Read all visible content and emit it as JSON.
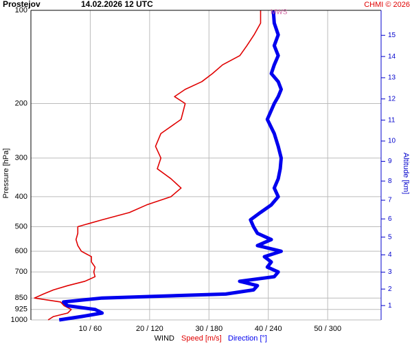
{
  "chart_data": {
    "type": "line",
    "station": "Prostejov",
    "title": "14.02.2026 12 UTC",
    "credit": "CHMI © 2026",
    "marker_label": "MWS",
    "ylabel": "Pressure [hPa]",
    "y2label": "Altitude [km]",
    "xlabel": "WIND",
    "ylog": true,
    "grid": true,
    "ylim": [
      1000,
      100
    ],
    "yticks": [
      100,
      200,
      300,
      400,
      500,
      600,
      700,
      850,
      925,
      1000
    ],
    "xlim": [
      0,
      59
    ],
    "x2lim": [
      0,
      354
    ],
    "xticks": [
      {
        "value": 10,
        "label": "10 / 60"
      },
      {
        "value": 20,
        "label": "20 / 120"
      },
      {
        "value": 30,
        "label": "30 / 180"
      },
      {
        "value": 40,
        "label": "40 / 240"
      },
      {
        "value": 50,
        "label": "50 / 300"
      }
    ],
    "y2ticks": [
      1,
      2,
      3,
      4,
      5,
      6,
      7,
      8,
      9,
      10,
      11,
      12,
      13,
      14,
      15
    ],
    "pressure": [
      1000,
      975,
      950,
      925,
      900,
      875,
      850,
      825,
      800,
      775,
      750,
      725,
      700,
      675,
      650,
      625,
      600,
      575,
      550,
      525,
      500,
      475,
      450,
      425,
      400,
      375,
      350,
      325,
      300,
      275,
      250,
      225,
      200,
      190,
      180,
      170,
      160,
      150,
      140,
      130,
      120,
      110,
      100
    ],
    "series": [
      {
        "name": "Speed [m/s]",
        "color": "#e00000",
        "axis": "x",
        "values": [
          2.9,
          3.8,
          6.2,
          6.8,
          5.6,
          5.0,
          0.6,
          2.1,
          3.8,
          6.2,
          9.1,
          10.8,
          10.6,
          10.8,
          10.2,
          10.2,
          8.5,
          7.9,
          7.6,
          7.9,
          7.9,
          12.0,
          16.6,
          19.5,
          23.6,
          25.3,
          23.6,
          21.3,
          21.9,
          21.0,
          21.9,
          25.3,
          26.0,
          24.2,
          26.0,
          28.8,
          30.6,
          32.3,
          35.2,
          36.4,
          37.6,
          38.7,
          38.7
        ]
      },
      {
        "name": "Direction [°]",
        "color": "#0000ee",
        "axis": "x2",
        "values": [
          28.6,
          51,
          72,
          65,
          37,
          33,
          72,
          197,
          225,
          229,
          211,
          246,
          250,
          239,
          243,
          236,
          253,
          229,
          243,
          229,
          225,
          222,
          232,
          243,
          250,
          246,
          250,
          252,
          253,
          250,
          246,
          239,
          246,
          250,
          253,
          250,
          243,
          246,
          250,
          246,
          250,
          246,
          245
        ]
      }
    ]
  }
}
